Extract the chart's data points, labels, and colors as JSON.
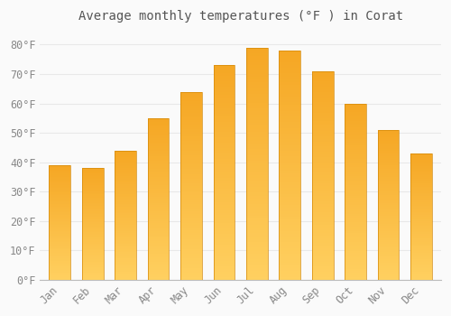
{
  "title": "Average monthly temperatures (°F ) in Corat",
  "months": [
    "Jan",
    "Feb",
    "Mar",
    "Apr",
    "May",
    "Jun",
    "Jul",
    "Aug",
    "Sep",
    "Oct",
    "Nov",
    "Dec"
  ],
  "values": [
    39,
    38,
    44,
    55,
    64,
    73,
    79,
    78,
    71,
    60,
    51,
    43
  ],
  "bar_color_top": "#F5A623",
  "bar_color_bottom": "#FFD060",
  "background_color": "#FAFAFA",
  "grid_color": "#E8E8E8",
  "tick_color": "#888888",
  "title_color": "#555555",
  "ylabel_ticks": [
    0,
    10,
    20,
    30,
    40,
    50,
    60,
    70,
    80
  ],
  "ylim": [
    0,
    85
  ],
  "title_fontsize": 10,
  "tick_fontsize": 8.5
}
